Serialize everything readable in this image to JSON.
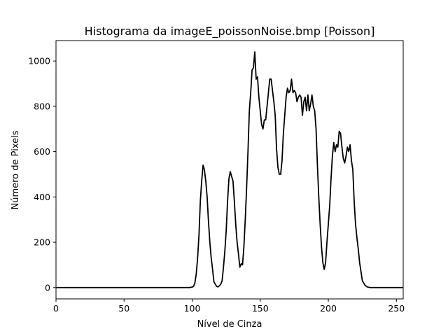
{
  "chart_data": {
    "type": "line",
    "title": "Histograma da imageE_poissonNoise.bmp [Poisson]",
    "xlabel": "Nível de Cinza",
    "ylabel": "Número de Pixels",
    "xlim": [
      0,
      255
    ],
    "ylim": [
      -50,
      1090
    ],
    "xticks": [
      0,
      50,
      100,
      150,
      200,
      250
    ],
    "yticks": [
      0,
      200,
      400,
      600,
      800,
      1000
    ],
    "grid": false,
    "line_color": "#000000",
    "series": [
      {
        "x": [
          0,
          50,
          98,
          100,
          101,
          102,
          103,
          104,
          105,
          106,
          107,
          108,
          109,
          110,
          111,
          112,
          113,
          114,
          115,
          116,
          117,
          118,
          119,
          120,
          121,
          122,
          123,
          124,
          125,
          126,
          127,
          128,
          129,
          130,
          131,
          132,
          133,
          134,
          135,
          136,
          137,
          138,
          139,
          140,
          141,
          142,
          143,
          144,
          145,
          146,
          147,
          148,
          149,
          150,
          151,
          152,
          153,
          154,
          155,
          156,
          157,
          158,
          159,
          160,
          161,
          162,
          163,
          164,
          165,
          166,
          167,
          168,
          169,
          170,
          171,
          172,
          173,
          174,
          175,
          176,
          177,
          178,
          179,
          180,
          181,
          182,
          183,
          184,
          185,
          186,
          187,
          188,
          189,
          190,
          191,
          192,
          193,
          194,
          195,
          196,
          197,
          198,
          199,
          200,
          201,
          202,
          203,
          204,
          205,
          206,
          207,
          208,
          209,
          210,
          211,
          212,
          213,
          214,
          215,
          216,
          217,
          218,
          219,
          220,
          221,
          222,
          223,
          224,
          225,
          226,
          227,
          228,
          229,
          230,
          231,
          232,
          233,
          235,
          255
        ],
        "y": [
          0,
          0,
          0,
          2,
          5,
          20,
          60,
          130,
          230,
          380,
          470,
          540,
          520,
          470,
          400,
          290,
          200,
          130,
          80,
          25,
          15,
          5,
          3,
          8,
          15,
          30,
          90,
          160,
          250,
          380,
          480,
          512,
          490,
          470,
          380,
          280,
          200,
          150,
          90,
          105,
          100,
          180,
          300,
          440,
          600,
          780,
          860,
          960,
          970,
          1040,
          920,
          930,
          840,
          780,
          720,
          700,
          740,
          740,
          800,
          860,
          920,
          920,
          870,
          820,
          760,
          610,
          530,
          500,
          500,
          560,
          680,
          760,
          840,
          880,
          860,
          870,
          920,
          860,
          870,
          860,
          820,
          840,
          850,
          840,
          760,
          820,
          840,
          780,
          850,
          780,
          810,
          850,
          800,
          780,
          700,
          540,
          400,
          280,
          180,
          110,
          80,
          110,
          200,
          280,
          360,
          480,
          580,
          640,
          600,
          630,
          620,
          690,
          680,
          620,
          570,
          550,
          580,
          620,
          600,
          630,
          560,
          520,
          380,
          280,
          220,
          170,
          110,
          70,
          30,
          20,
          10,
          5,
          2,
          1,
          0,
          0,
          0,
          0,
          0
        ]
      }
    ]
  }
}
